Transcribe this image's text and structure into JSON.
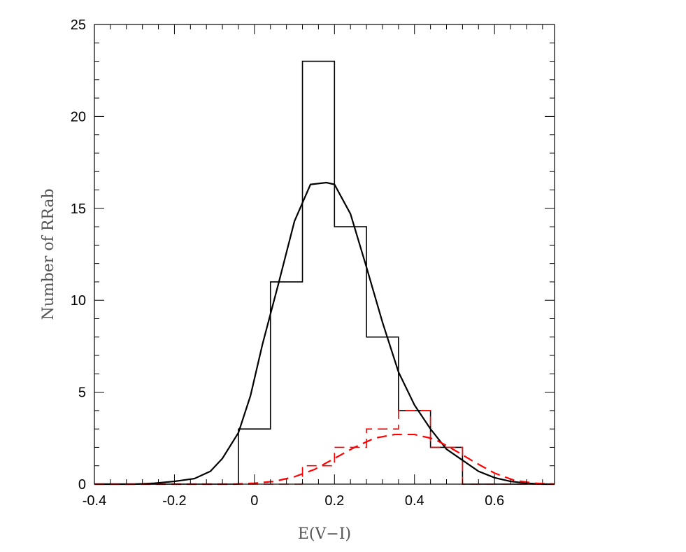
{
  "chart_data": {
    "type": "histogram",
    "xlabel": "E(V−I)",
    "ylabel": "Number of RRab",
    "xlim": [
      -0.4,
      0.75
    ],
    "ylim": [
      0,
      25
    ],
    "x_ticks": [
      -0.4,
      -0.2,
      0,
      0.2,
      0.4,
      0.6
    ],
    "x_tick_labels": [
      "-0.4",
      "-0.2",
      "0",
      "0.2",
      "0.4",
      "0.6"
    ],
    "y_ticks": [
      0,
      5,
      10,
      15,
      20,
      25
    ],
    "y_tick_labels": [
      "0",
      "5",
      "10",
      "15",
      "20",
      "25"
    ],
    "grid": false,
    "series": [
      {
        "style": "histogram-solid",
        "color": "#000000",
        "bin_edges": [
          -0.4,
          -0.04,
          0.04,
          0.12,
          0.2,
          0.28,
          0.36,
          0.44,
          0.52,
          0.75
        ],
        "counts": [
          0,
          3,
          11,
          23,
          14,
          8,
          4,
          2,
          0
        ]
      },
      {
        "style": "histogram-dashed",
        "color": "#ff0000",
        "bin_edges": [
          -0.4,
          0.12,
          0.2,
          0.28,
          0.36,
          0.44,
          0.52,
          0.75
        ],
        "counts": [
          0,
          1,
          2,
          3,
          4,
          2,
          0
        ]
      },
      {
        "style": "curve-solid",
        "color": "#000000",
        "x": [
          -0.4,
          -0.3,
          -0.25,
          -0.2,
          -0.15,
          -0.11,
          -0.08,
          -0.04,
          -0.01,
          0.02,
          0.06,
          0.1,
          0.14,
          0.18,
          0.2,
          0.24,
          0.28,
          0.32,
          0.36,
          0.4,
          0.44,
          0.48,
          0.52,
          0.56,
          0.6,
          0.64,
          0.68,
          0.72,
          0.75
        ],
        "y": [
          0,
          0,
          0.05,
          0.15,
          0.3,
          0.7,
          1.4,
          2.8,
          4.8,
          7.6,
          10.9,
          14.3,
          16.3,
          16.4,
          16.3,
          14.7,
          11.8,
          8.8,
          6.1,
          4.3,
          3.0,
          1.9,
          1.3,
          0.7,
          0.35,
          0.15,
          0.05,
          0,
          0
        ]
      },
      {
        "style": "curve-dashed",
        "color": "#ff0000",
        "x": [
          -0.4,
          -0.05,
          0,
          0.05,
          0.1,
          0.15,
          0.2,
          0.25,
          0.3,
          0.35,
          0.4,
          0.45,
          0.5,
          0.55,
          0.6,
          0.65,
          0.7,
          0.75
        ],
        "y": [
          0,
          0,
          0.05,
          0.15,
          0.4,
          0.8,
          1.4,
          2.0,
          2.5,
          2.7,
          2.7,
          2.45,
          1.85,
          1.2,
          0.6,
          0.2,
          0.05,
          0
        ]
      }
    ]
  }
}
